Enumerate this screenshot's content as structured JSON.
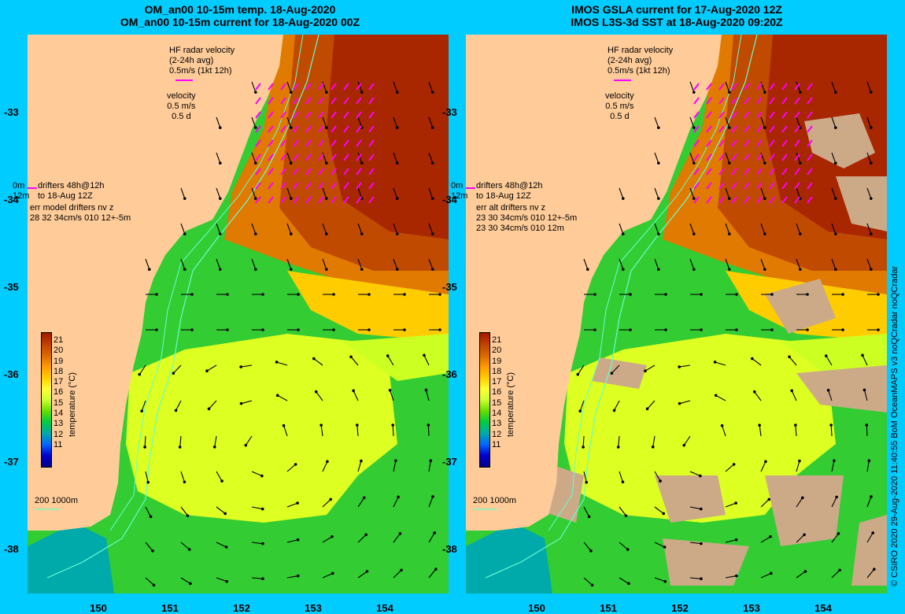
{
  "left_panel": {
    "title_line1": "OM_an00 10-15m temp. 18-Aug-2020",
    "title_line2": "OM_an00 10-15m current for 18-Aug-2020 00Z",
    "hf_radar_label": "HF radar velocity",
    "hf_radar_avg": "(2-24h avg)",
    "hf_radar_scale": "0.5m/s (1kt 12h)",
    "velocity_label": "velocity",
    "velocity_scale": "0.5 m/s",
    "velocity_days": "0.5 d",
    "drifters_line1": "drifters 48h@12h",
    "drifters_line2": "to 18-Aug 12Z",
    "drifters_0m": "0m",
    "drifters_12m": "12m",
    "err_line1": "err model drifters nv z",
    "err_line2": "28 32 34cm/s 010 12+-5m",
    "err_line3": "",
    "isobath_label": "200  1000m"
  },
  "right_panel": {
    "title_line1": "IMOS GSLA current for 17-Aug-2020 12Z",
    "title_line2": "IMOS L3S-3d SST at 18-Aug-2020 09:20Z",
    "hf_radar_label": "HF radar velocity",
    "hf_radar_avg": "(2-24h avg)",
    "hf_radar_scale": "0.5m/s (1kt 12h)",
    "velocity_label": "velocity",
    "velocity_scale": "0.5 m/s",
    "velocity_days": "0.5 d",
    "drifters_line1": "drifters 48h@12h",
    "drifters_line2": "to 18-Aug 12Z",
    "drifters_0m": "0m",
    "drifters_12m": "12m",
    "err_line1": "err alt drifters nv z",
    "err_line2": "23 30 34cm/s 010 12+-5m",
    "err_line3": "23 30 34cm/s 010 12m",
    "isobath_label": "200  1000m"
  },
  "y_axis_labels": [
    "-33",
    "-34",
    "-35",
    "-36",
    "-37",
    "-38"
  ],
  "x_axis_labels": [
    "150",
    "151",
    "152",
    "153",
    "154"
  ],
  "colorbar": {
    "title": "temperature (°C)",
    "ticks": [
      "21",
      "20",
      "19",
      "18",
      "17",
      "16",
      "15",
      "14",
      "13",
      "12",
      "11"
    ],
    "colors": [
      "#a01a00",
      "#c04000",
      "#d86a00",
      "#ff9900",
      "#ffcc00",
      "#ffff33",
      "#ccff33",
      "#66dd00",
      "#00cc44",
      "#00aaaa",
      "#0066ff",
      "#0000cc",
      "#000088"
    ]
  },
  "credit": "© CSIRO 2020   29-Aug-2020 11:40:55 BoM OceanMAPS v3 noQCradar noQCradar",
  "colors": {
    "background": "#00ccff",
    "land": "#ffcc99",
    "radar_arrow": "#ff00ff",
    "isobath": "#66ffcc",
    "missing_data": "#ccaa88"
  }
}
